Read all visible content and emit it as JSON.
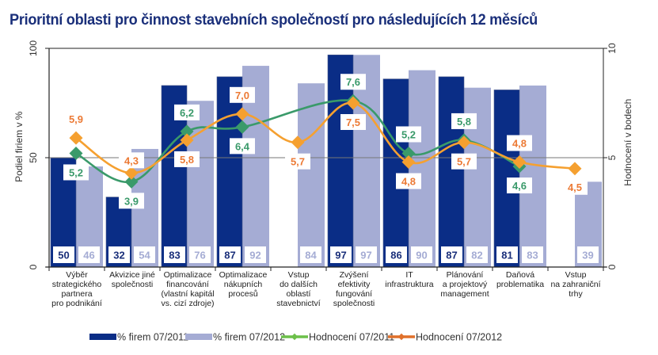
{
  "chart_data": {
    "type": "bar",
    "title": "Prioritní oblasti pro činnost stavebních společností pro následujících 12 měsíců",
    "xlabel": "",
    "ylabel": "Podiel firiem v %",
    "y2label": "Hodnocení v bodech",
    "ylim": [
      0,
      100
    ],
    "y2lim": [
      0,
      10
    ],
    "yticks": [
      "0",
      "50",
      "100"
    ],
    "y2ticks": [
      "0",
      "5",
      "10"
    ],
    "grid": "horizontal line at 50",
    "legend_position": "bottom",
    "categories": [
      [
        "Výběr",
        "strategického",
        "partnera",
        "pro podnikání"
      ],
      [
        "Akvizice jiné",
        "společnosti"
      ],
      [
        "Optimalizace",
        "financování",
        "(vlastní kapitál",
        "vs. cizí zdroje)"
      ],
      [
        "Optimalizace",
        "nákupních",
        "procesů"
      ],
      [
        "Vstup",
        "do dalších",
        "oblastí",
        "stavebnictví"
      ],
      [
        "Zvýšení",
        "efektivity",
        "fungování",
        "společnosti"
      ],
      [
        "IT",
        "infrastruktura"
      ],
      [
        "Plánování",
        "a projektový",
        "management"
      ],
      [
        "Daňová",
        "problematika"
      ],
      [
        "Vstup",
        "na zahraniční",
        "trhy"
      ]
    ],
    "series": [
      {
        "name": "% firem 07/2011",
        "type": "bar",
        "axis": "left",
        "color": "#0a2d86",
        "values": [
          50,
          32,
          83,
          87,
          null,
          97,
          86,
          87,
          81,
          null
        ]
      },
      {
        "name": "% firem 07/2012",
        "type": "bar",
        "axis": "left",
        "color": "#a5acd4",
        "values": [
          46,
          54,
          76,
          92,
          84,
          97,
          90,
          82,
          83,
          39
        ]
      },
      {
        "name": "Hodnocení 07/2011",
        "type": "line",
        "axis": "right",
        "color": "#3a9a6a",
        "legend_color": "#6cc04a",
        "values": [
          5.2,
          3.9,
          6.2,
          6.4,
          null,
          7.6,
          5.2,
          5.8,
          4.6,
          null
        ],
        "labels": [
          "5,2",
          "3,9",
          "6,2",
          "6,4",
          null,
          "7,6",
          "5,2",
          "5,8",
          "4,6",
          null
        ]
      },
      {
        "name": "Hodnocení 07/2012",
        "type": "line",
        "axis": "right",
        "color": "#f5a030",
        "label_color": "#ec7a35",
        "legend_color": "#e0702a",
        "values": [
          5.9,
          4.3,
          5.8,
          7.0,
          5.7,
          7.5,
          4.8,
          5.7,
          4.8,
          4.5
        ],
        "labels": [
          "5,9",
          "4,3",
          "5,8",
          "7,0",
          "5,7",
          "7,5",
          "4,8",
          "5,7",
          "4,8",
          "4,5"
        ]
      }
    ]
  }
}
